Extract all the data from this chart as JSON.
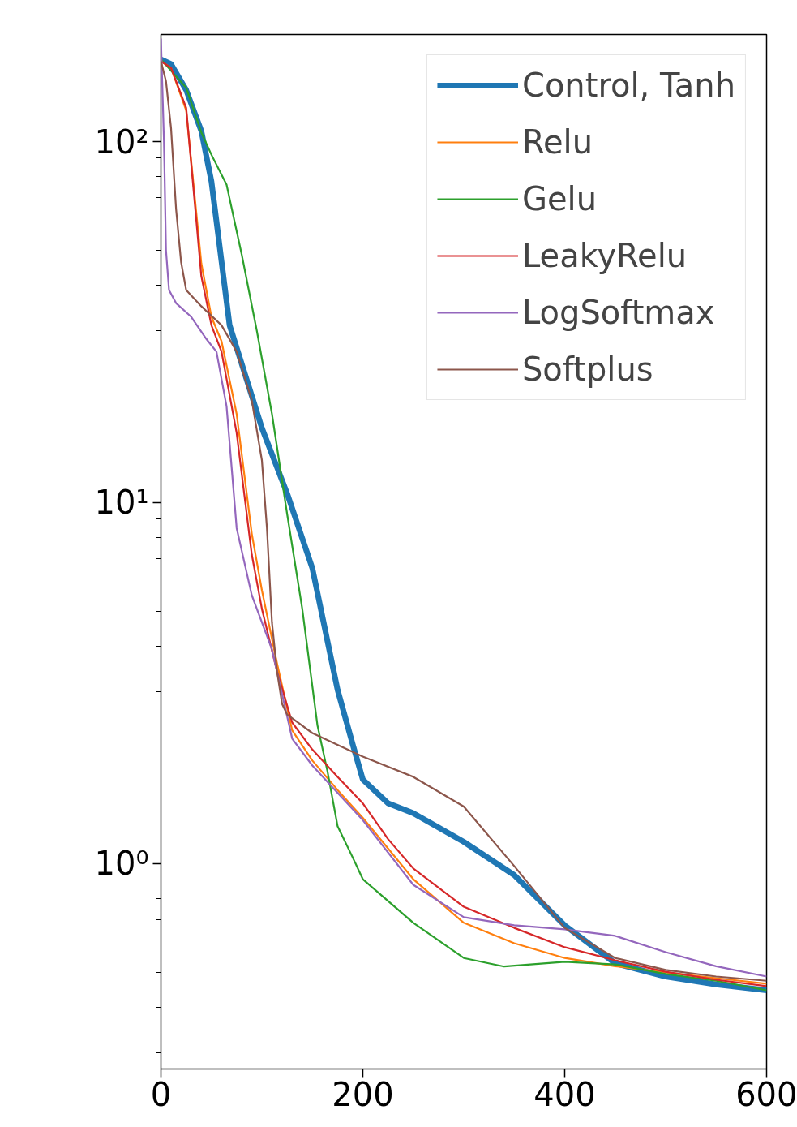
{
  "chart_data": {
    "type": "line",
    "log": "y",
    "legend": "top right",
    "grid": false,
    "xlim": [
      0,
      600
    ],
    "xticks": [
      0,
      200,
      400,
      600
    ],
    "ylim": [
      0.27,
      198
    ],
    "yticks": [
      {
        "value": 0.3,
        "label": null
      },
      {
        "value": 0.4,
        "label": null
      },
      {
        "value": 0.5,
        "label": null
      },
      {
        "value": 0.6,
        "label": null
      },
      {
        "value": 0.7,
        "label": null
      },
      {
        "value": 0.8,
        "label": null
      },
      {
        "value": 0.9,
        "label": null
      },
      {
        "value": 1,
        "label": "10⁰"
      },
      {
        "value": 2,
        "label": null
      },
      {
        "value": 3,
        "label": null
      },
      {
        "value": 4,
        "label": null
      },
      {
        "value": 5,
        "label": null
      },
      {
        "value": 6,
        "label": null
      },
      {
        "value": 7,
        "label": null
      },
      {
        "value": 8,
        "label": null
      },
      {
        "value": 9,
        "label": null
      },
      {
        "value": 10,
        "label": "10¹"
      },
      {
        "value": 20,
        "label": null
      },
      {
        "value": 30,
        "label": null
      },
      {
        "value": 40,
        "label": null
      },
      {
        "value": 50,
        "label": null
      },
      {
        "value": 60,
        "label": null
      },
      {
        "value": 70,
        "label": null
      },
      {
        "value": 80,
        "label": null
      },
      {
        "value": 90,
        "label": null
      },
      {
        "value": 100,
        "label": "10²"
      }
    ],
    "series": [
      {
        "name": "Control, Tanh",
        "color": "#1f77b4",
        "x": [
          0,
          10,
          25,
          40,
          50,
          68,
          100,
          125,
          150,
          175,
          190,
          200,
          225,
          250,
          300,
          350,
          400,
          450,
          500,
          550,
          600
        ],
        "values": [
          169,
          164,
          139,
          107,
          77.6,
          31.0,
          16.1,
          10.6,
          6.58,
          3.03,
          2.14,
          1.71,
          1.47,
          1.38,
          1.15,
          0.93,
          0.675,
          0.53,
          0.487,
          0.463,
          0.446
        ]
      },
      {
        "name": "Relu",
        "color": "#ff7f0e",
        "x": [
          0,
          10,
          25,
          40,
          50,
          60,
          75,
          90,
          100,
          115,
          130,
          150,
          175,
          200,
          250,
          300,
          350,
          400,
          450,
          500,
          550,
          600
        ],
        "values": [
          167,
          160,
          122,
          46,
          32.7,
          28.0,
          17.6,
          8.2,
          5.72,
          3.59,
          2.34,
          1.93,
          1.6,
          1.34,
          0.906,
          0.686,
          0.602,
          0.548,
          0.52,
          0.5,
          0.482,
          0.465
        ]
      },
      {
        "name": "Gelu",
        "color": "#2ca02c",
        "x": [
          0,
          25,
          40,
          50,
          65,
          80,
          95,
          110,
          125,
          140,
          155,
          165,
          175,
          190,
          200,
          250,
          300,
          340,
          400,
          450,
          500,
          550,
          600
        ],
        "values": [
          169,
          141,
          106,
          92,
          76,
          48.7,
          29.9,
          17.6,
          9.3,
          5.08,
          2.42,
          1.8,
          1.27,
          1.04,
          0.906,
          0.686,
          0.548,
          0.519,
          0.535,
          0.526,
          0.495,
          0.474,
          0.446
        ]
      },
      {
        "name": "LeakyRelu",
        "color": "#d62728",
        "x": [
          0,
          10,
          25,
          40,
          50,
          60,
          75,
          90,
          100,
          115,
          130,
          150,
          175,
          200,
          225,
          250,
          300,
          350,
          400,
          450,
          500,
          550,
          600
        ],
        "values": [
          167,
          160,
          124,
          42.4,
          31.0,
          26.2,
          15.6,
          7.18,
          5.08,
          3.41,
          2.46,
          2.07,
          1.74,
          1.47,
          1.17,
          0.97,
          0.76,
          0.664,
          0.587,
          0.54,
          0.502,
          0.477,
          0.458
        ]
      },
      {
        "name": "LogSoftmax",
        "color": "#9467bd",
        "x": [
          0,
          3,
          5,
          8,
          15,
          30,
          45,
          55,
          65,
          75,
          90,
          110,
          130,
          150,
          200,
          250,
          300,
          350,
          400,
          450,
          500,
          550,
          600
        ],
        "values": [
          193,
          100,
          50,
          38.8,
          35.7,
          32.7,
          28.4,
          26.2,
          18.5,
          8.5,
          5.54,
          3.92,
          2.22,
          1.87,
          1.32,
          0.874,
          0.711,
          0.675,
          0.658,
          0.631,
          0.569,
          0.52,
          0.487
        ]
      },
      {
        "name": "Softplus",
        "color": "#8c564b",
        "x": [
          0,
          5,
          10,
          15,
          20,
          25,
          40,
          60,
          75,
          90,
          100,
          105,
          110,
          115,
          120,
          125,
          150,
          200,
          250,
          300,
          350,
          400,
          450,
          500,
          550,
          600
        ],
        "values": [
          167,
          147,
          109,
          65,
          46.3,
          38.8,
          35,
          31.0,
          26.2,
          19.2,
          13.1,
          8.5,
          4.65,
          3.41,
          2.77,
          2.59,
          2.3,
          1.98,
          1.74,
          1.44,
          0.985,
          0.664,
          0.548,
          0.508,
          0.487,
          0.474
        ]
      }
    ]
  }
}
